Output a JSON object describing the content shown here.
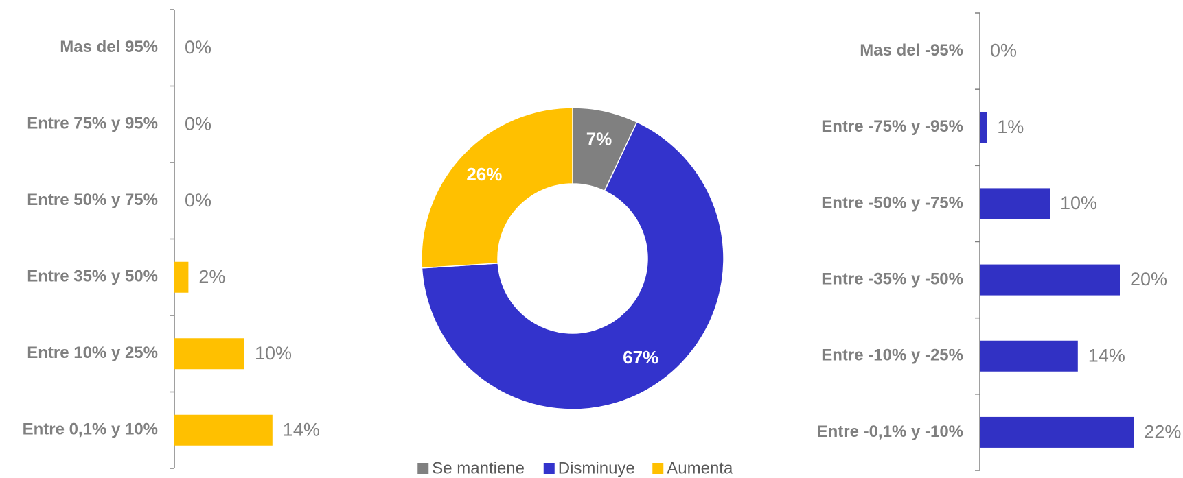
{
  "chart_data": [
    {
      "type": "hbar",
      "categories": [
        "Mas del 95%",
        "Entre 75% y 95%",
        "Entre 50% y 75%",
        "Entre 35% y 50%",
        "Entre 10% y 25%",
        "Entre 0,1% y 10%"
      ],
      "values": [
        0,
        0,
        0,
        2,
        10,
        14
      ],
      "value_labels": [
        "0%",
        "0%",
        "0%",
        "2%",
        "10%",
        "14%"
      ],
      "color": "#FFC000"
    },
    {
      "type": "donut",
      "categories": [
        "Se mantiene",
        "Disminuye",
        "Aumenta"
      ],
      "values": [
        7,
        67,
        26
      ],
      "value_labels": [
        "7%",
        "67%",
        "26%"
      ],
      "colors": [
        "#808080",
        "#3333CC",
        "#FFC000"
      ]
    },
    {
      "type": "hbar",
      "categories": [
        "Mas del -95%",
        "Entre -75% y -95%",
        "Entre -50% y -75%",
        "Entre -35% y -50%",
        "Entre -10% y -25%",
        "Entre -0,1% y -10%"
      ],
      "values": [
        0,
        1,
        10,
        20,
        14,
        22
      ],
      "value_labels": [
        "0%",
        "1%",
        "10%",
        "20%",
        "14%",
        "22%"
      ],
      "color": "#3131C4"
    }
  ]
}
